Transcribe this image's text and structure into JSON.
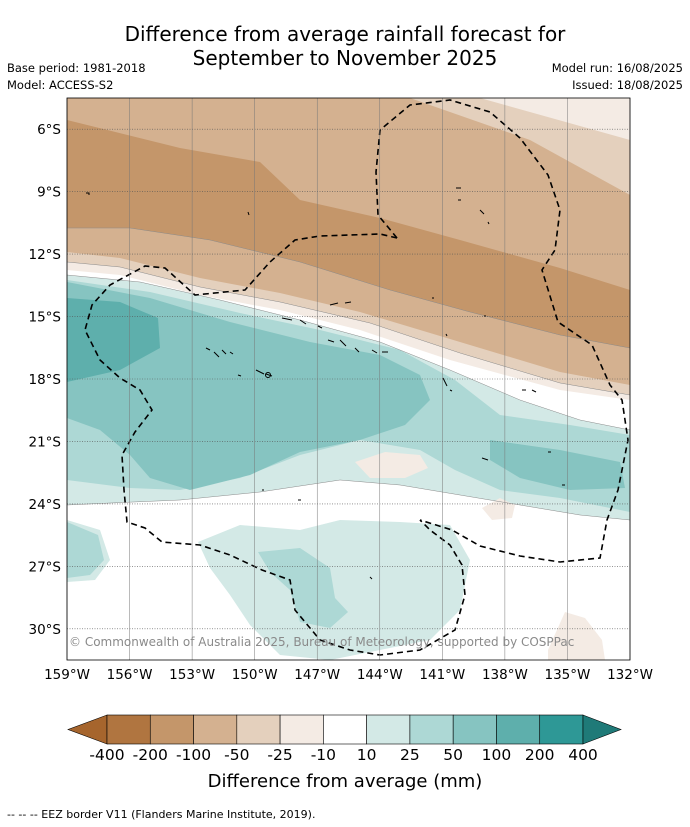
{
  "header": {
    "title_line1": "Difference from average rainfall forecast for",
    "title_line2": "September to November 2025",
    "base_period": "Base period: 1981-2018",
    "model": "Model: ACCESS-S2",
    "model_run": "Model run: 16/08/2025",
    "issued": "Issued: 18/08/2025"
  },
  "map": {
    "copyright": "© Commonwealth of Australia 2025, Bureau of Meteorology, supported by COSPPac",
    "lat_labels": [
      "6°S",
      "9°S",
      "12°S",
      "15°S",
      "18°S",
      "21°S",
      "24°S",
      "27°S",
      "30°S"
    ],
    "lon_labels": [
      "159°W",
      "156°W",
      "153°W",
      "150°W",
      "147°W",
      "144°W",
      "141°W",
      "138°W",
      "135°W",
      "132°W"
    ],
    "lon_range": [
      -159,
      -132
    ],
    "lat_range": [
      -31.5,
      -4.5
    ]
  },
  "colorbar": {
    "labels": [
      "-400",
      "-200",
      "-100",
      "-50",
      "-25",
      "-10",
      "10",
      "25",
      "50",
      "100",
      "200",
      "400"
    ],
    "colors": [
      "#a6652d",
      "#b07540",
      "#c4966a",
      "#d4b190",
      "#e4d0bd",
      "#f4ebe4",
      "#ffffff",
      "#d3e9e6",
      "#add8d5",
      "#86c4c1",
      "#5eafac",
      "#2e9896",
      "#1f7a78"
    ],
    "title": "Difference from average (mm)"
  },
  "footer": {
    "eez_legend": "-- -- -- EEZ border V11 (Flanders Marine Institute, 2019)."
  }
}
